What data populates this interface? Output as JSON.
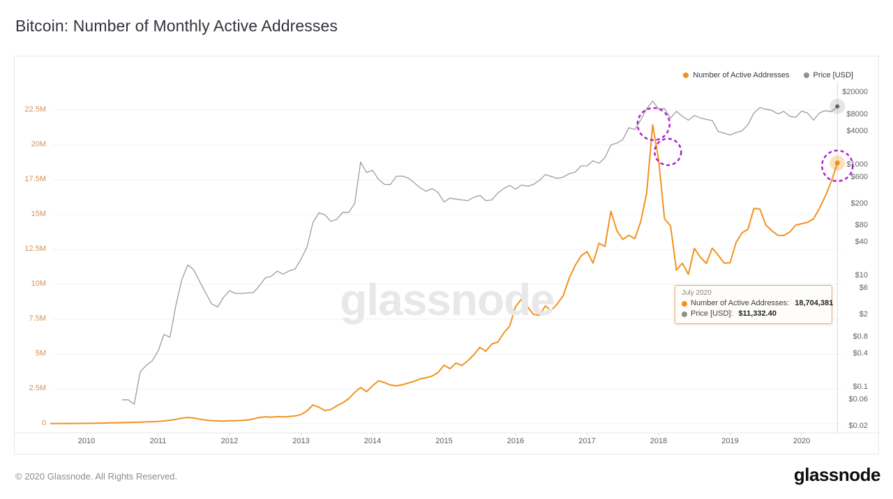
{
  "title": "Bitcoin: Number of Monthly Active Addresses",
  "watermark": "glassnode",
  "legend": [
    {
      "label": "Number of Active Addresses",
      "color": "#f2921d"
    },
    {
      "label": "Price [USD]",
      "color": "#8e8f93"
    }
  ],
  "tooltip": {
    "date": "July 2020",
    "rows": [
      {
        "label": "Number of Active Addresses:",
        "value": "18,704,381",
        "color": "#f2921d"
      },
      {
        "label": "Price [USD]:",
        "value": "$11,332.40",
        "color": "#8e8f93"
      }
    ]
  },
  "footer": {
    "copyright": "© 2020 Glassnode. All Rights Reserved.",
    "logo": "glassnode"
  },
  "colors": {
    "addresses_line": "#f2921d",
    "price_line": "#9c9c9e",
    "annotation_circle": "#b01fd4",
    "left_axis_text": "#cf9260",
    "grid": "#f0f0f1",
    "crosshair": "#d8d8da"
  },
  "chart_data": {
    "type": "line",
    "title": "Bitcoin: Number of Monthly Active Addresses",
    "grid": "horizontal",
    "legend_position": "top-right",
    "x_axis": {
      "range": [
        2009.5,
        2020.6
      ],
      "ticks": [
        2010,
        2011,
        2012,
        2013,
        2014,
        2015,
        2016,
        2017,
        2018,
        2019,
        2020
      ]
    },
    "y_left_axis": {
      "name": "Number of Active Addresses",
      "scale": "linear",
      "unit": "million addresses",
      "range": [
        0,
        26.3
      ],
      "ticks": [
        {
          "label": "22.5M",
          "value": 22.5
        },
        {
          "label": "20M",
          "value": 20
        },
        {
          "label": "17.5M",
          "value": 17.5
        },
        {
          "label": "15M",
          "value": 15
        },
        {
          "label": "12.5M",
          "value": 12.5
        },
        {
          "label": "10M",
          "value": 10
        },
        {
          "label": "7.5M",
          "value": 7.5
        },
        {
          "label": "5M",
          "value": 5
        },
        {
          "label": "2.5M",
          "value": 2.5
        },
        {
          "label": "0",
          "value": 0
        }
      ]
    },
    "y_right_axis": {
      "name": "Price [USD]",
      "scale": "log",
      "range": [
        0.015,
        30000
      ],
      "ticks": [
        {
          "label": "$20000",
          "value": 20000
        },
        {
          "label": "$8000",
          "value": 8000
        },
        {
          "label": "$4000",
          "value": 4000
        },
        {
          "label": "$1000",
          "value": 1000
        },
        {
          "label": "$600",
          "value": 600
        },
        {
          "label": "$200",
          "value": 200
        },
        {
          "label": "$80",
          "value": 80
        },
        {
          "label": "$40",
          "value": 40
        },
        {
          "label": "$10",
          "value": 10
        },
        {
          "label": "$6",
          "value": 6
        },
        {
          "label": "$2",
          "value": 2
        },
        {
          "label": "$0.8",
          "value": 0.8
        },
        {
          "label": "$0.4",
          "value": 0.4
        },
        {
          "label": "$0.1",
          "value": 0.1
        },
        {
          "label": "$0.06",
          "value": 0.06
        },
        {
          "label": "$0.02",
          "value": 0.02
        }
      ]
    },
    "series": [
      {
        "name": "Number of Active Addresses",
        "axis": "left",
        "unit": "million addresses",
        "color": "#f2921d",
        "width": 2,
        "points": [
          [
            2009.5,
            0.01
          ],
          [
            2009.667,
            0.02
          ],
          [
            2009.833,
            0.02
          ],
          [
            2010.0,
            0.03
          ],
          [
            2010.167,
            0.04
          ],
          [
            2010.333,
            0.06
          ],
          [
            2010.5,
            0.08
          ],
          [
            2010.667,
            0.1
          ],
          [
            2010.833,
            0.13
          ],
          [
            2011.0,
            0.16
          ],
          [
            2011.083,
            0.2
          ],
          [
            2011.167,
            0.25
          ],
          [
            2011.25,
            0.31
          ],
          [
            2011.333,
            0.4
          ],
          [
            2011.417,
            0.45
          ],
          [
            2011.5,
            0.41
          ],
          [
            2011.583,
            0.33
          ],
          [
            2011.667,
            0.26
          ],
          [
            2011.75,
            0.22
          ],
          [
            2011.833,
            0.2
          ],
          [
            2011.917,
            0.19
          ],
          [
            2012.0,
            0.21
          ],
          [
            2012.083,
            0.21
          ],
          [
            2012.167,
            0.23
          ],
          [
            2012.25,
            0.27
          ],
          [
            2012.333,
            0.34
          ],
          [
            2012.417,
            0.45
          ],
          [
            2012.5,
            0.5
          ],
          [
            2012.583,
            0.47
          ],
          [
            2012.667,
            0.51
          ],
          [
            2012.75,
            0.49
          ],
          [
            2012.833,
            0.52
          ],
          [
            2012.917,
            0.56
          ],
          [
            2013.0,
            0.66
          ],
          [
            2013.083,
            0.92
          ],
          [
            2013.167,
            1.35
          ],
          [
            2013.25,
            1.18
          ],
          [
            2013.333,
            0.95
          ],
          [
            2013.417,
            1.02
          ],
          [
            2013.5,
            1.28
          ],
          [
            2013.583,
            1.5
          ],
          [
            2013.667,
            1.8
          ],
          [
            2013.75,
            2.25
          ],
          [
            2013.833,
            2.6
          ],
          [
            2013.917,
            2.3
          ],
          [
            2014.0,
            2.72
          ],
          [
            2014.083,
            3.08
          ],
          [
            2014.167,
            2.95
          ],
          [
            2014.25,
            2.78
          ],
          [
            2014.333,
            2.72
          ],
          [
            2014.417,
            2.8
          ],
          [
            2014.5,
            2.92
          ],
          [
            2014.583,
            3.05
          ],
          [
            2014.667,
            3.22
          ],
          [
            2014.75,
            3.3
          ],
          [
            2014.833,
            3.42
          ],
          [
            2014.917,
            3.68
          ],
          [
            2015.0,
            4.2
          ],
          [
            2015.083,
            3.95
          ],
          [
            2015.167,
            4.35
          ],
          [
            2015.25,
            4.18
          ],
          [
            2015.333,
            4.52
          ],
          [
            2015.417,
            4.95
          ],
          [
            2015.5,
            5.48
          ],
          [
            2015.583,
            5.2
          ],
          [
            2015.667,
            5.72
          ],
          [
            2015.75,
            5.85
          ],
          [
            2015.833,
            6.5
          ],
          [
            2015.917,
            7.0
          ],
          [
            2016.0,
            8.4
          ],
          [
            2016.083,
            8.95
          ],
          [
            2016.167,
            8.4
          ],
          [
            2016.25,
            7.85
          ],
          [
            2016.333,
            7.78
          ],
          [
            2016.417,
            8.45
          ],
          [
            2016.5,
            8.12
          ],
          [
            2016.583,
            8.6
          ],
          [
            2016.667,
            9.2
          ],
          [
            2016.75,
            10.45
          ],
          [
            2016.833,
            11.35
          ],
          [
            2016.917,
            12.05
          ],
          [
            2017.0,
            12.35
          ],
          [
            2017.083,
            11.52
          ],
          [
            2017.167,
            12.95
          ],
          [
            2017.25,
            12.72
          ],
          [
            2017.333,
            15.25
          ],
          [
            2017.417,
            13.85
          ],
          [
            2017.5,
            13.22
          ],
          [
            2017.583,
            13.52
          ],
          [
            2017.667,
            13.28
          ],
          [
            2017.75,
            14.5
          ],
          [
            2017.833,
            16.55
          ],
          [
            2017.917,
            21.45
          ],
          [
            2018.0,
            18.95
          ],
          [
            2018.083,
            14.7
          ],
          [
            2018.167,
            14.2
          ],
          [
            2018.25,
            11.02
          ],
          [
            2018.333,
            11.52
          ],
          [
            2018.417,
            10.72
          ],
          [
            2018.5,
            12.58
          ],
          [
            2018.583,
            11.95
          ],
          [
            2018.667,
            11.5
          ],
          [
            2018.75,
            12.6
          ],
          [
            2018.833,
            12.1
          ],
          [
            2018.917,
            11.52
          ],
          [
            2019.0,
            11.55
          ],
          [
            2019.083,
            13.0
          ],
          [
            2019.167,
            13.7
          ],
          [
            2019.25,
            13.95
          ],
          [
            2019.333,
            15.45
          ],
          [
            2019.417,
            15.4
          ],
          [
            2019.5,
            14.25
          ],
          [
            2019.583,
            13.85
          ],
          [
            2019.667,
            13.52
          ],
          [
            2019.75,
            13.5
          ],
          [
            2019.833,
            13.75
          ],
          [
            2019.917,
            14.25
          ],
          [
            2020.0,
            14.35
          ],
          [
            2020.083,
            14.45
          ],
          [
            2020.167,
            14.7
          ],
          [
            2020.25,
            15.45
          ],
          [
            2020.333,
            16.35
          ],
          [
            2020.417,
            17.4
          ],
          [
            2020.5,
            18.7
          ]
        ]
      },
      {
        "name": "Price [USD]",
        "axis": "right",
        "unit": "USD",
        "color": "#9c9c9e",
        "width": 1.3,
        "points": [
          [
            2010.5,
            0.06
          ],
          [
            2010.583,
            0.06
          ],
          [
            2010.667,
            0.05
          ],
          [
            2010.75,
            0.19
          ],
          [
            2010.833,
            0.25
          ],
          [
            2010.917,
            0.3
          ],
          [
            2011.0,
            0.45
          ],
          [
            2011.083,
            0.9
          ],
          [
            2011.167,
            0.8
          ],
          [
            2011.25,
            3.0
          ],
          [
            2011.333,
            8.7
          ],
          [
            2011.417,
            16.0
          ],
          [
            2011.5,
            13.0
          ],
          [
            2011.583,
            8.0
          ],
          [
            2011.667,
            5.0
          ],
          [
            2011.75,
            3.2
          ],
          [
            2011.833,
            2.8
          ],
          [
            2011.917,
            4.2
          ],
          [
            2012.0,
            5.5
          ],
          [
            2012.083,
            4.9
          ],
          [
            2012.167,
            4.9
          ],
          [
            2012.25,
            5.0
          ],
          [
            2012.333,
            5.1
          ],
          [
            2012.417,
            6.7
          ],
          [
            2012.5,
            9.4
          ],
          [
            2012.583,
            10.0
          ],
          [
            2012.667,
            12.4
          ],
          [
            2012.75,
            10.9
          ],
          [
            2012.833,
            12.5
          ],
          [
            2012.917,
            13.5
          ],
          [
            2013.0,
            20.4
          ],
          [
            2013.083,
            33.4
          ],
          [
            2013.167,
            93
          ],
          [
            2013.25,
            139
          ],
          [
            2013.333,
            128
          ],
          [
            2013.417,
            97
          ],
          [
            2013.5,
            106
          ],
          [
            2013.583,
            141
          ],
          [
            2013.667,
            141
          ],
          [
            2013.75,
            204
          ],
          [
            2013.833,
            1130
          ],
          [
            2013.917,
            732
          ],
          [
            2014.0,
            806
          ],
          [
            2014.083,
            550
          ],
          [
            2014.167,
            450
          ],
          [
            2014.25,
            446
          ],
          [
            2014.333,
            627
          ],
          [
            2014.417,
            635
          ],
          [
            2014.5,
            583
          ],
          [
            2014.583,
            478
          ],
          [
            2014.667,
            387
          ],
          [
            2014.75,
            338
          ],
          [
            2014.833,
            378
          ],
          [
            2014.917,
            320
          ],
          [
            2015.0,
            217
          ],
          [
            2015.083,
            254
          ],
          [
            2015.167,
            244
          ],
          [
            2015.25,
            236
          ],
          [
            2015.333,
            230
          ],
          [
            2015.417,
            263
          ],
          [
            2015.5,
            284
          ],
          [
            2015.583,
            230
          ],
          [
            2015.667,
            236
          ],
          [
            2015.75,
            314
          ],
          [
            2015.833,
            377
          ],
          [
            2015.917,
            430
          ],
          [
            2016.0,
            368
          ],
          [
            2016.083,
            437
          ],
          [
            2016.167,
            416
          ],
          [
            2016.25,
            448
          ],
          [
            2016.333,
            531
          ],
          [
            2016.417,
            673
          ],
          [
            2016.5,
            624
          ],
          [
            2016.583,
            575
          ],
          [
            2016.667,
            609
          ],
          [
            2016.75,
            700
          ],
          [
            2016.833,
            745
          ],
          [
            2016.917,
            963
          ],
          [
            2017.0,
            970
          ],
          [
            2017.083,
            1190
          ],
          [
            2017.167,
            1080
          ],
          [
            2017.25,
            1350
          ],
          [
            2017.333,
            2300
          ],
          [
            2017.417,
            2480
          ],
          [
            2017.5,
            2875
          ],
          [
            2017.583,
            4703
          ],
          [
            2017.667,
            4360
          ],
          [
            2017.75,
            6468
          ],
          [
            2017.833,
            10233
          ],
          [
            2017.917,
            14156
          ],
          [
            2018.0,
            10221
          ],
          [
            2018.083,
            10397
          ],
          [
            2018.167,
            6973
          ],
          [
            2018.25,
            9240
          ],
          [
            2018.333,
            7494
          ],
          [
            2018.417,
            6404
          ],
          [
            2018.5,
            7780
          ],
          [
            2018.583,
            7037
          ],
          [
            2018.667,
            6625
          ],
          [
            2018.75,
            6317
          ],
          [
            2018.833,
            4017
          ],
          [
            2018.917,
            3742
          ],
          [
            2019.0,
            3457
          ],
          [
            2019.083,
            3854
          ],
          [
            2019.167,
            4105
          ],
          [
            2019.25,
            5350
          ],
          [
            2019.333,
            8574
          ],
          [
            2019.417,
            10817
          ],
          [
            2019.5,
            10085
          ],
          [
            2019.583,
            9630
          ],
          [
            2019.667,
            8308
          ],
          [
            2019.75,
            9199
          ],
          [
            2019.833,
            7569
          ],
          [
            2019.917,
            7193
          ],
          [
            2020.0,
            9350
          ],
          [
            2020.083,
            8599
          ],
          [
            2020.167,
            6438
          ],
          [
            2020.25,
            8658
          ],
          [
            2020.333,
            9461
          ],
          [
            2020.417,
            9137
          ],
          [
            2020.5,
            11332.4
          ]
        ]
      }
    ],
    "highlighted_point": {
      "date": "July 2020",
      "x": 2020.5,
      "active_addresses": 18704381,
      "price_usd": 11332.4
    },
    "annotation_circles": [
      {
        "x": 2017.93,
        "value_millions": 21.5
      },
      {
        "x": 2018.13,
        "value_millions": 19.5
      },
      {
        "x": 2020.5,
        "value_millions": 18.5
      }
    ]
  }
}
